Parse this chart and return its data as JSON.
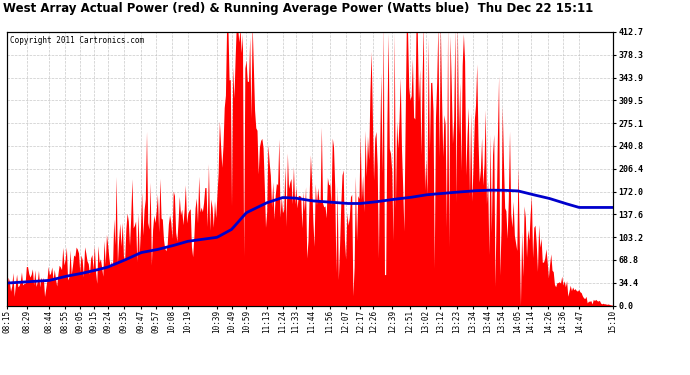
{
  "title": "West Array Actual Power (red) & Running Average Power (Watts blue)  Thu Dec 22 15:11",
  "copyright": "Copyright 2011 Cartronics.com",
  "ylabel_right": [
    "412.7",
    "378.3",
    "343.9",
    "309.5",
    "275.1",
    "240.8",
    "206.4",
    "172.0",
    "137.6",
    "103.2",
    "68.8",
    "34.4",
    "0.0"
  ],
  "ymax": 412.7,
  "ymin": 0.0,
  "background_color": "#ffffff",
  "plot_bg_color": "#ffffff",
  "grid_color": "#bbbbbb",
  "bar_color": "#ff0000",
  "avg_line_color": "#0000cc",
  "x_labels": [
    "08:15",
    "08:29",
    "08:44",
    "08:55",
    "09:05",
    "09:15",
    "09:24",
    "09:35",
    "09:47",
    "09:57",
    "10:08",
    "10:19",
    "10:39",
    "10:49",
    "10:59",
    "11:13",
    "11:24",
    "11:33",
    "11:44",
    "11:56",
    "12:07",
    "12:17",
    "12:26",
    "12:39",
    "12:51",
    "13:02",
    "13:12",
    "13:23",
    "13:34",
    "13:44",
    "13:54",
    "14:05",
    "14:14",
    "14:26",
    "14:36",
    "14:47",
    "15:10"
  ],
  "avg_values": [
    34,
    36,
    38,
    44,
    48,
    53,
    58,
    68,
    80,
    84,
    90,
    97,
    103,
    115,
    140,
    155,
    163,
    162,
    158,
    156,
    154,
    154,
    156,
    160,
    163,
    167,
    169,
    171,
    173,
    174,
    174,
    173,
    168,
    162,
    155,
    148,
    148
  ]
}
